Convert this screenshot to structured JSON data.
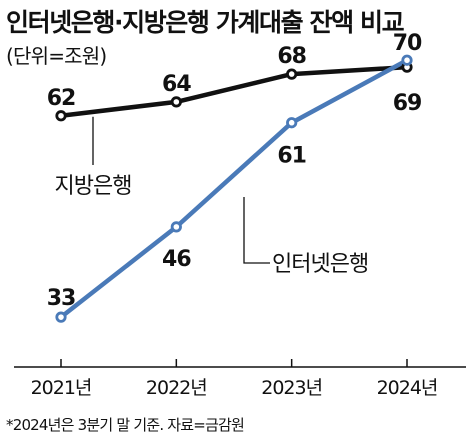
{
  "title": "인터넷은행·지방은행 가계대출 잔액 비교",
  "subtitle": "(단위=조원)",
  "footnote": "*2024년은 3분기 말 기준. 자료=금감원",
  "colors": {
    "regional_bank": "#111111",
    "internet_bank": "#4a7ab8"
  },
  "chart_data": {
    "type": "line",
    "title": "인터넷은행·지방은행 가계대출 잔액 비교",
    "unit": "(단위=조원)",
    "categories": [
      "2021년",
      "2022년",
      "2023년",
      "2024년"
    ],
    "series": [
      {
        "name": "지방은행",
        "values": [
          62,
          64,
          68,
          69
        ],
        "labels": [
          "62",
          "64",
          "68",
          "69"
        ],
        "color": "#111111"
      },
      {
        "name": "인터넷은행",
        "values": [
          33,
          46,
          61,
          70
        ],
        "labels": [
          "33",
          "46",
          "61",
          "70"
        ],
        "color": "#4a7ab8"
      }
    ],
    "ylim": [
      27,
      75
    ],
    "grid": false,
    "legend": "inline labels"
  }
}
